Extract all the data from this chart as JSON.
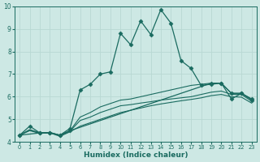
{
  "xlabel": "Humidex (Indice chaleur)",
  "xlim": [
    -0.5,
    23.5
  ],
  "ylim": [
    4,
    10
  ],
  "xticks": [
    0,
    1,
    2,
    3,
    4,
    5,
    6,
    7,
    8,
    9,
    10,
    11,
    12,
    13,
    14,
    15,
    16,
    17,
    18,
    19,
    20,
    21,
    22,
    23
  ],
  "yticks": [
    4,
    5,
    6,
    7,
    8,
    9,
    10
  ],
  "bg_color": "#cde8e4",
  "line_color": "#1a6b60",
  "grid_color": "#b8d8d3",
  "lines": [
    {
      "x": [
        0,
        1,
        2,
        3,
        4,
        5,
        6,
        7,
        8,
        9,
        10,
        11,
        12,
        13,
        14,
        15,
        16,
        17,
        18,
        19,
        20,
        21,
        22,
        23
      ],
      "y": [
        4.3,
        4.7,
        4.4,
        4.4,
        4.3,
        4.6,
        6.3,
        6.55,
        7.0,
        7.1,
        8.8,
        8.3,
        9.35,
        8.75,
        9.85,
        9.25,
        7.6,
        7.25,
        6.5,
        6.55,
        6.6,
        5.9,
        6.15,
        5.85
      ],
      "marker": "D",
      "markersize": 2.5,
      "lw": 0.9
    },
    {
      "x": [
        0,
        2,
        3,
        4,
        5,
        19,
        20,
        21,
        22,
        23
      ],
      "y": [
        4.3,
        4.4,
        4.42,
        4.3,
        4.5,
        6.6,
        6.6,
        6.15,
        6.15,
        5.9
      ],
      "marker": "D",
      "markersize": 2.5,
      "lw": 0.9
    },
    {
      "x": [
        0,
        1,
        2,
        3,
        4,
        5,
        6,
        7,
        8,
        9,
        10,
        11,
        12,
        13,
        14,
        15,
        16,
        17,
        18,
        19,
        20,
        21,
        22,
        23
      ],
      "y": [
        4.3,
        4.55,
        4.4,
        4.42,
        4.3,
        4.5,
        5.1,
        5.3,
        5.55,
        5.7,
        5.85,
        5.9,
        6.0,
        6.1,
        6.2,
        6.3,
        6.4,
        6.5,
        6.55,
        6.6,
        6.6,
        6.15,
        6.15,
        5.9
      ],
      "marker": null,
      "markersize": 0,
      "lw": 0.8
    },
    {
      "x": [
        0,
        1,
        2,
        3,
        4,
        5,
        6,
        7,
        8,
        9,
        10,
        11,
        12,
        13,
        14,
        15,
        16,
        17,
        18,
        19,
        20,
        21,
        22,
        23
      ],
      "y": [
        4.3,
        4.52,
        4.4,
        4.41,
        4.28,
        4.48,
        4.95,
        5.1,
        5.3,
        5.45,
        5.6,
        5.65,
        5.72,
        5.78,
        5.85,
        5.9,
        5.95,
        6.0,
        6.1,
        6.2,
        6.25,
        6.1,
        6.1,
        5.8
      ],
      "marker": null,
      "markersize": 0,
      "lw": 0.8
    },
    {
      "x": [
        0,
        1,
        2,
        3,
        4,
        5,
        6,
        7,
        8,
        9,
        10,
        11,
        12,
        13,
        14,
        15,
        16,
        17,
        18,
        19,
        20,
        21,
        22,
        23
      ],
      "y": [
        4.3,
        4.5,
        4.38,
        4.4,
        4.25,
        4.45,
        4.7,
        4.85,
        5.0,
        5.15,
        5.3,
        5.4,
        5.5,
        5.6,
        5.68,
        5.75,
        5.82,
        5.88,
        5.95,
        6.05,
        6.1,
        6.0,
        5.98,
        5.72
      ],
      "marker": null,
      "markersize": 0,
      "lw": 0.8
    }
  ]
}
